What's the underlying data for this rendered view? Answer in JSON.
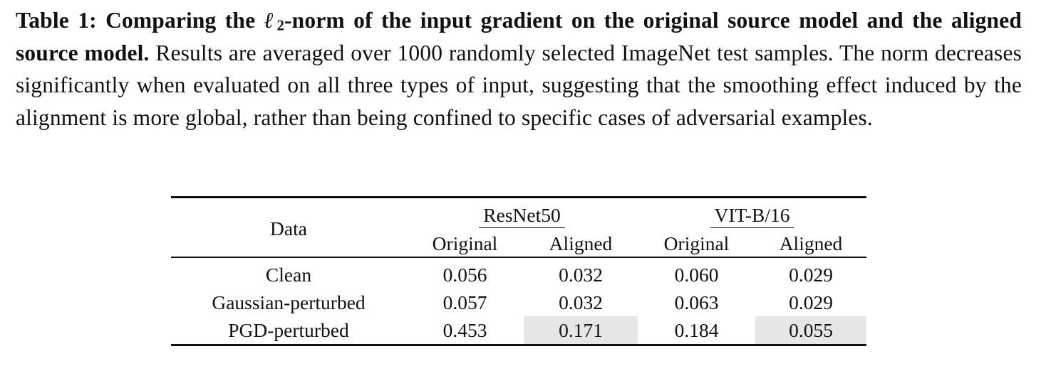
{
  "caption": {
    "label": "Table 1:",
    "bold_part1": " Comparing the ",
    "ell": "ℓ",
    "ell_sub": "2",
    "bold_part2": "-norm of the input gradient on the original source model and the aligned source model.",
    "body": " Results are averaged over 1000 randomly selected ImageNet test samples. The norm decreases significantly when evaluated on all three types of input, suggesting that the smoothing effect induced by the alignment is more global, rather than being confined to specific cases of adversarial examples."
  },
  "table": {
    "data_header": "Data",
    "groups": [
      "ResNet50",
      "VIT-B/16"
    ],
    "subheaders": [
      "Original",
      "Aligned",
      "Original",
      "Aligned"
    ],
    "rows": [
      {
        "label": "Clean",
        "values": [
          "0.056",
          "0.032",
          "0.060",
          "0.029"
        ]
      },
      {
        "label": "Gaussian-perturbed",
        "values": [
          "0.057",
          "0.032",
          "0.063",
          "0.029"
        ]
      },
      {
        "label": "PGD-perturbed",
        "values": [
          "0.453",
          "0.171",
          "0.184",
          "0.055"
        ]
      }
    ],
    "highlight_color": "#e6e6e6"
  }
}
